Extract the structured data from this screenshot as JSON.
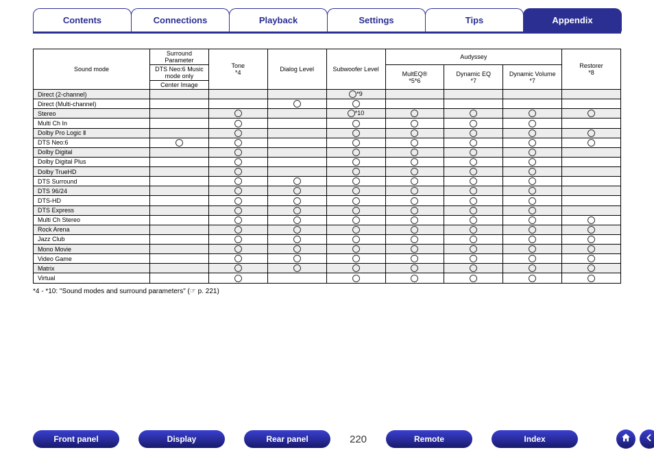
{
  "tabs": [
    {
      "label": "Contents",
      "active": false
    },
    {
      "label": "Connections",
      "active": false
    },
    {
      "label": "Playback",
      "active": false
    },
    {
      "label": "Settings",
      "active": false
    },
    {
      "label": "Tips",
      "active": false
    },
    {
      "label": "Appendix",
      "active": true
    }
  ],
  "colors": {
    "brand": "#2b2f91",
    "row_alt": "#ededed",
    "border": "#000000",
    "bg": "#ffffff"
  },
  "table": {
    "header": {
      "sound_mode": "Sound mode",
      "surround_parameter": "Surround Parameter",
      "dts_neo6": "DTS Neo:6 Music mode only",
      "center_image": "Center Image",
      "tone": "Tone",
      "tone_sub": "*4",
      "dialog_level": "Dialog Level",
      "subwoofer_level": "Subwoofer Level",
      "audyssey": "Audyssey",
      "multeq": "MultEQ®",
      "multeq_sub": "*5*6",
      "dynamic_eq": "Dynamic EQ",
      "dynamic_eq_sub": "*7",
      "dynamic_volume": "Dynamic Volume",
      "dynamic_volume_sub": "*7",
      "restorer": "Restorer",
      "restorer_sub": "*8"
    },
    "rows": [
      {
        "name": "Direct (2-channel)",
        "center_image": "",
        "tone": "",
        "dialog": "",
        "sub": "○*9",
        "multeq": "",
        "dyneq": "",
        "dynvol": "",
        "restorer": ""
      },
      {
        "name": "Direct (Multi-channel)",
        "center_image": "",
        "tone": "",
        "dialog": "○",
        "sub": "○",
        "multeq": "",
        "dyneq": "",
        "dynvol": "",
        "restorer": ""
      },
      {
        "name": "Stereo",
        "center_image": "",
        "tone": "○",
        "dialog": "",
        "sub": "○*10",
        "multeq": "○",
        "dyneq": "○",
        "dynvol": "○",
        "restorer": "○"
      },
      {
        "name": "Multi Ch In",
        "center_image": "",
        "tone": "○",
        "dialog": "",
        "sub": "○",
        "multeq": "○",
        "dyneq": "○",
        "dynvol": "○",
        "restorer": ""
      },
      {
        "name": "Dolby Pro Logic Ⅱ",
        "center_image": "",
        "tone": "○",
        "dialog": "",
        "sub": "○",
        "multeq": "○",
        "dyneq": "○",
        "dynvol": "○",
        "restorer": "○"
      },
      {
        "name": "DTS Neo:6",
        "center_image": "○",
        "tone": "○",
        "dialog": "",
        "sub": "○",
        "multeq": "○",
        "dyneq": "○",
        "dynvol": "○",
        "restorer": "○"
      },
      {
        "name": "Dolby Digital",
        "center_image": "",
        "tone": "○",
        "dialog": "",
        "sub": "○",
        "multeq": "○",
        "dyneq": "○",
        "dynvol": "○",
        "restorer": ""
      },
      {
        "name": "Dolby Digital Plus",
        "center_image": "",
        "tone": "○",
        "dialog": "",
        "sub": "○",
        "multeq": "○",
        "dyneq": "○",
        "dynvol": "○",
        "restorer": ""
      },
      {
        "name": "Dolby TrueHD",
        "center_image": "",
        "tone": "○",
        "dialog": "",
        "sub": "○",
        "multeq": "○",
        "dyneq": "○",
        "dynvol": "○",
        "restorer": ""
      },
      {
        "name": "DTS Surround",
        "center_image": "",
        "tone": "○",
        "dialog": "○",
        "sub": "○",
        "multeq": "○",
        "dyneq": "○",
        "dynvol": "○",
        "restorer": ""
      },
      {
        "name": "DTS 96/24",
        "center_image": "",
        "tone": "○",
        "dialog": "○",
        "sub": "○",
        "multeq": "○",
        "dyneq": "○",
        "dynvol": "○",
        "restorer": ""
      },
      {
        "name": "DTS-HD",
        "center_image": "",
        "tone": "○",
        "dialog": "○",
        "sub": "○",
        "multeq": "○",
        "dyneq": "○",
        "dynvol": "○",
        "restorer": ""
      },
      {
        "name": "DTS Express",
        "center_image": "",
        "tone": "○",
        "dialog": "○",
        "sub": "○",
        "multeq": "○",
        "dyneq": "○",
        "dynvol": "○",
        "restorer": ""
      },
      {
        "name": "Multi Ch Stereo",
        "center_image": "",
        "tone": "○",
        "dialog": "○",
        "sub": "○",
        "multeq": "○",
        "dyneq": "○",
        "dynvol": "○",
        "restorer": "○"
      },
      {
        "name": "Rock Arena",
        "center_image": "",
        "tone": "○",
        "dialog": "○",
        "sub": "○",
        "multeq": "○",
        "dyneq": "○",
        "dynvol": "○",
        "restorer": "○"
      },
      {
        "name": "Jazz Club",
        "center_image": "",
        "tone": "○",
        "dialog": "○",
        "sub": "○",
        "multeq": "○",
        "dyneq": "○",
        "dynvol": "○",
        "restorer": "○"
      },
      {
        "name": "Mono Movie",
        "center_image": "",
        "tone": "○",
        "dialog": "○",
        "sub": "○",
        "multeq": "○",
        "dyneq": "○",
        "dynvol": "○",
        "restorer": "○"
      },
      {
        "name": "Video Game",
        "center_image": "",
        "tone": "○",
        "dialog": "○",
        "sub": "○",
        "multeq": "○",
        "dyneq": "○",
        "dynvol": "○",
        "restorer": "○"
      },
      {
        "name": "Matrix",
        "center_image": "",
        "tone": "○",
        "dialog": "○",
        "sub": "○",
        "multeq": "○",
        "dyneq": "○",
        "dynvol": "○",
        "restorer": "○"
      },
      {
        "name": "Virtual",
        "center_image": "",
        "tone": "○",
        "dialog": "",
        "sub": "○",
        "multeq": "○",
        "dyneq": "○",
        "dynvol": "○",
        "restorer": "○"
      }
    ]
  },
  "footnote": "*4 - *10: \"Sound modes and surround parameters\" (☞ p. 221)",
  "bottom": {
    "buttons": [
      "Front panel",
      "Display",
      "Rear panel",
      "Remote",
      "Index"
    ],
    "page_number": "220"
  }
}
